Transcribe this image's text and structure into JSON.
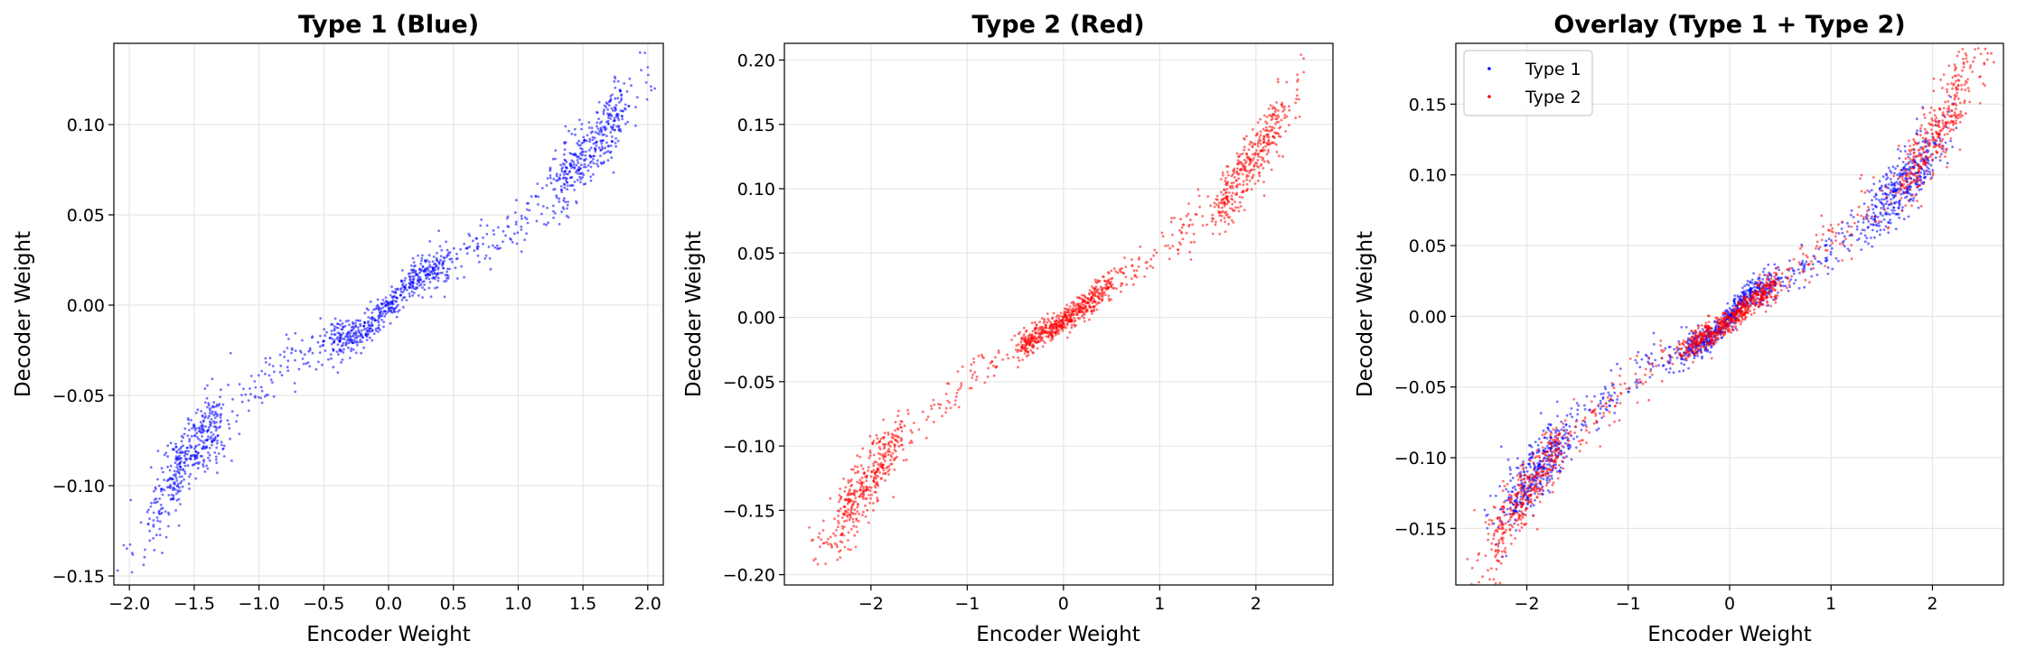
{
  "chart_data": [
    {
      "type": "scatter",
      "title": "Type 1 (Blue)",
      "xlabel": "Encoder Weight",
      "ylabel": "Decoder Weight",
      "xlim": [
        -2.12,
        2.12
      ],
      "ylim": [
        -0.155,
        0.145
      ],
      "xticks": [
        -2.0,
        -1.5,
        -1.0,
        -0.5,
        0.0,
        0.5,
        1.0,
        1.5,
        2.0
      ],
      "xtick_labels": [
        "−2.0",
        "−1.5",
        "−1.0",
        "−0.5",
        "0.0",
        "0.5",
        "1.0",
        "1.5",
        "2.0"
      ],
      "yticks": [
        -0.15,
        -0.1,
        -0.05,
        0.0,
        0.05,
        0.1
      ],
      "ytick_labels": [
        "−0.15",
        "−0.10",
        "−0.05",
        "0.00",
        "0.05",
        "0.10"
      ],
      "grid": true,
      "legend": null,
      "series": [
        {
          "color": "#0000ff",
          "curve": [
            [
              -2.0,
              -0.135
            ],
            [
              -1.8,
              -0.11
            ],
            [
              -1.5,
              -0.079
            ],
            [
              -1.0,
              -0.045
            ],
            [
              -0.5,
              -0.022
            ],
            [
              -0.2,
              -0.015
            ],
            [
              0.0,
              0.0
            ],
            [
              0.2,
              0.015
            ],
            [
              0.5,
              0.023
            ],
            [
              1.0,
              0.045
            ],
            [
              1.5,
              0.082
            ],
            [
              1.8,
              0.108
            ],
            [
              2.0,
              0.128
            ]
          ],
          "x_range": [
            -2.0,
            2.0
          ]
        }
      ]
    },
    {
      "type": "scatter",
      "title": "Type 2 (Red)",
      "xlabel": "Encoder Weight",
      "ylabel": "Decoder Weight",
      "xlim": [
        -2.9,
        2.8
      ],
      "ylim": [
        -0.208,
        0.213
      ],
      "xticks": [
        -2,
        -1,
        0,
        1,
        2
      ],
      "xtick_labels": [
        "−2",
        "−1",
        "0",
        "1",
        "2"
      ],
      "yticks": [
        -0.2,
        -0.15,
        -0.1,
        -0.05,
        0.0,
        0.05,
        0.1,
        0.15,
        0.2
      ],
      "ytick_labels": [
        "−0.20",
        "−0.15",
        "−0.10",
        "−0.05",
        "0.00",
        "0.05",
        "0.10",
        "0.15",
        "0.20"
      ],
      "grid": true,
      "legend": null,
      "series": [
        {
          "color": "#ff0000",
          "curve": [
            [
              -2.6,
              -0.188
            ],
            [
              -2.3,
              -0.155
            ],
            [
              -2.0,
              -0.125
            ],
            [
              -1.7,
              -0.092
            ],
            [
              -1.0,
              -0.05
            ],
            [
              -0.5,
              -0.025
            ],
            [
              0.0,
              -0.003
            ],
            [
              0.5,
              0.025
            ],
            [
              1.0,
              0.055
            ],
            [
              1.7,
              0.095
            ],
            [
              2.0,
              0.125
            ],
            [
              2.3,
              0.16
            ],
            [
              2.5,
              0.18
            ]
          ],
          "x_range": [
            -2.6,
            2.5
          ]
        }
      ]
    },
    {
      "type": "scatter",
      "title": "Overlay (Type 1 + Type 2)",
      "xlabel": "Encoder Weight",
      "ylabel": "Decoder Weight",
      "xlim": [
        -2.7,
        2.7
      ],
      "ylim": [
        -0.19,
        0.193
      ],
      "xticks": [
        -2,
        -1,
        0,
        1,
        2
      ],
      "xtick_labels": [
        "−2",
        "−1",
        "0",
        "1",
        "2"
      ],
      "yticks": [
        -0.15,
        -0.1,
        -0.05,
        0.0,
        0.05,
        0.1,
        0.15
      ],
      "ytick_labels": [
        "−0.15",
        "−0.10",
        "−0.05",
        "0.00",
        "0.05",
        "0.10",
        "0.15"
      ],
      "grid": true,
      "legend": "top-left",
      "series": [
        {
          "name": "Type 1",
          "color": "#0000ff",
          "curve": [
            [
              -2.4,
              -0.15
            ],
            [
              -2.0,
              -0.117
            ],
            [
              -1.5,
              -0.076
            ],
            [
              -1.0,
              -0.045
            ],
            [
              -0.5,
              -0.025
            ],
            [
              -0.2,
              -0.016
            ],
            [
              0.0,
              0.0
            ],
            [
              0.2,
              0.016
            ],
            [
              0.5,
              0.025
            ],
            [
              1.0,
              0.045
            ],
            [
              1.5,
              0.077
            ],
            [
              2.0,
              0.115
            ],
            [
              2.2,
              0.133
            ]
          ],
          "x_range": [
            -2.4,
            2.2
          ]
        },
        {
          "name": "Type 2",
          "color": "#ff0000",
          "curve": [
            [
              -2.6,
              -0.188
            ],
            [
              -2.3,
              -0.155
            ],
            [
              -2.0,
              -0.125
            ],
            [
              -1.7,
              -0.092
            ],
            [
              -1.0,
              -0.05
            ],
            [
              -0.5,
              -0.025
            ],
            [
              0.0,
              -0.003
            ],
            [
              0.5,
              0.025
            ],
            [
              1.0,
              0.055
            ],
            [
              1.7,
              0.095
            ],
            [
              2.0,
              0.125
            ],
            [
              2.3,
              0.16
            ],
            [
              2.6,
              0.19
            ]
          ],
          "x_range": [
            -2.6,
            2.6
          ]
        }
      ]
    }
  ]
}
